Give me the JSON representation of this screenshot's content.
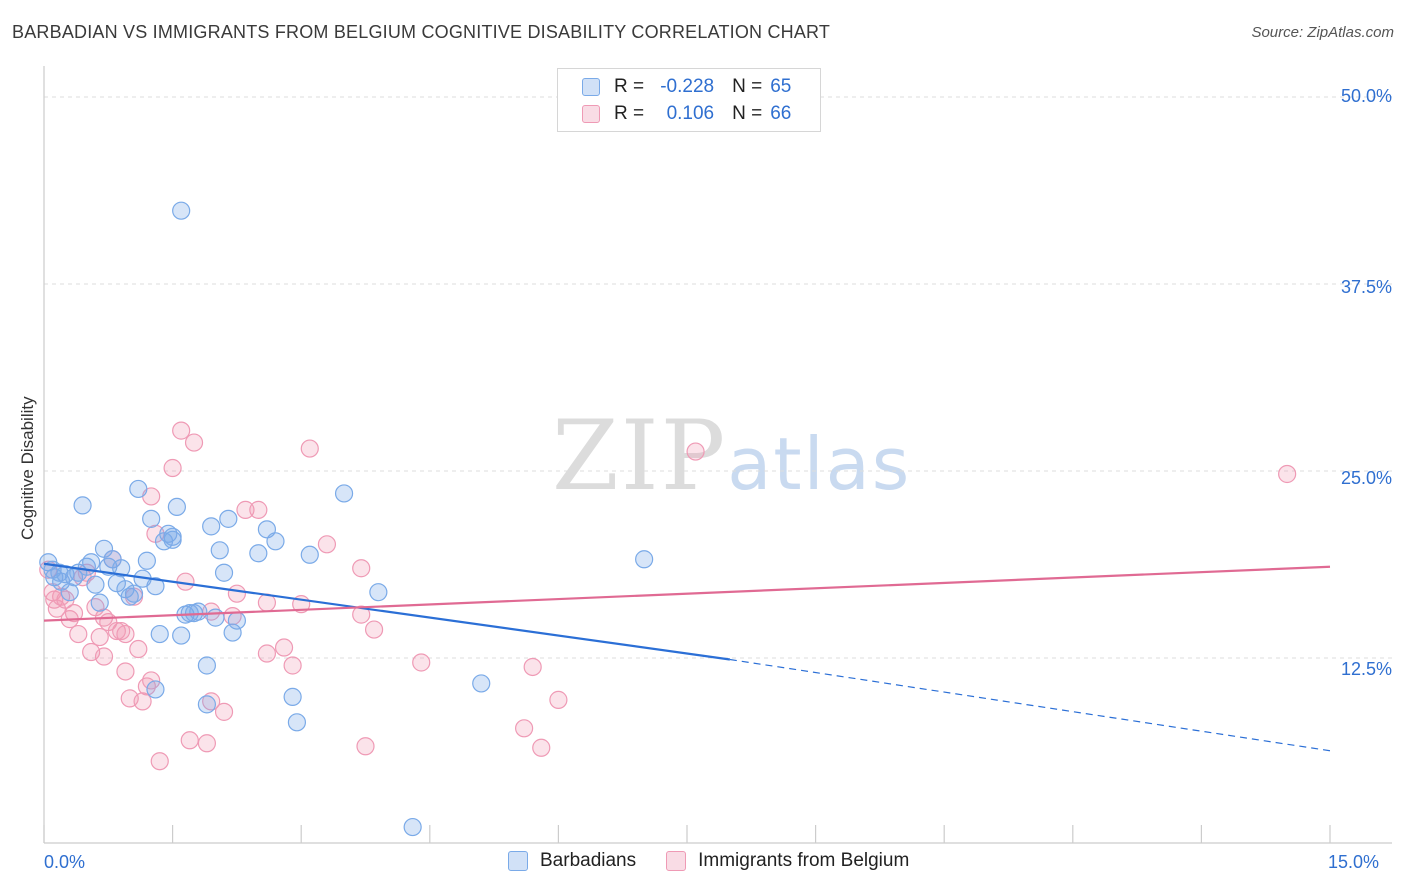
{
  "header": {
    "title": "BARBADIAN VS IMMIGRANTS FROM BELGIUM COGNITIVE DISABILITY CORRELATION CHART",
    "source": "Source: ZipAtlas.com"
  },
  "watermark": {
    "zip": "ZIP",
    "atlas": "atlas"
  },
  "legend_top": {
    "rows": [
      {
        "r_label": "R =",
        "r_value": "-0.228",
        "n_label": "N =",
        "n_value": "65"
      },
      {
        "r_label": "R =",
        "r_value": "0.106",
        "n_label": "N =",
        "n_value": "66"
      }
    ]
  },
  "legend_bottom": {
    "series1": "Barbadians",
    "series2": "Immigrants from Belgium"
  },
  "axes": {
    "x_min_label": "0.0%",
    "x_max_label": "15.0%",
    "y_ticks": [
      "50.0%",
      "37.5%",
      "25.0%",
      "12.5%"
    ]
  },
  "colors": {
    "blue": "#7aaae8",
    "blue_fill": "rgba(122,170,232,0.30)",
    "blue_line": "#2b6fd6",
    "pink": "#ef9ab5",
    "pink_fill": "rgba(239,154,181,0.28)",
    "pink_line": "#e06a93",
    "accent_text": "#2f6fd0"
  },
  "chart_data": {
    "type": "scatter",
    "title": "BARBADIAN VS IMMIGRANTS FROM BELGIUM COGNITIVE DISABILITY CORRELATION CHART",
    "xlabel": "",
    "ylabel": "Cognitive Disability",
    "xlim": [
      0,
      15
    ],
    "ylim": [
      0,
      50
    ],
    "grid": true,
    "legend": "bottom-center",
    "series": [
      {
        "name": "Barbadians",
        "R": -0.228,
        "N": 65,
        "trend": {
          "x": [
            0,
            8.0
          ],
          "y": [
            18.8,
            12.4
          ],
          "dashed_to": [
            15,
            6.3
          ]
        },
        "points": [
          [
            0.05,
            18.9
          ],
          [
            0.1,
            18.4
          ],
          [
            0.12,
            17.9
          ],
          [
            0.18,
            18.2
          ],
          [
            0.2,
            17.6
          ],
          [
            0.25,
            18.1
          ],
          [
            0.3,
            16.9
          ],
          [
            0.35,
            17.9
          ],
          [
            0.4,
            18.2
          ],
          [
            0.45,
            22.7
          ],
          [
            0.5,
            18.6
          ],
          [
            0.55,
            18.9
          ],
          [
            0.6,
            17.4
          ],
          [
            0.65,
            16.2
          ],
          [
            0.7,
            19.8
          ],
          [
            0.75,
            18.6
          ],
          [
            0.8,
            19.1
          ],
          [
            0.85,
            17.5
          ],
          [
            0.9,
            18.5
          ],
          [
            0.95,
            17.1
          ],
          [
            1.0,
            16.6
          ],
          [
            1.05,
            16.8
          ],
          [
            1.1,
            23.8
          ],
          [
            1.15,
            17.8
          ],
          [
            1.2,
            19.0
          ],
          [
            1.25,
            21.8
          ],
          [
            1.3,
            17.3
          ],
          [
            1.3,
            10.4
          ],
          [
            1.35,
            14.1
          ],
          [
            1.4,
            20.3
          ],
          [
            1.45,
            20.8
          ],
          [
            1.5,
            20.6
          ],
          [
            1.5,
            20.4
          ],
          [
            1.55,
            22.6
          ],
          [
            1.6,
            14.0
          ],
          [
            1.6,
            42.4
          ],
          [
            1.65,
            15.4
          ],
          [
            1.7,
            15.5
          ],
          [
            1.75,
            15.5
          ],
          [
            1.8,
            15.6
          ],
          [
            1.9,
            9.4
          ],
          [
            1.9,
            12.0
          ],
          [
            1.95,
            21.3
          ],
          [
            2.0,
            15.2
          ],
          [
            2.05,
            19.7
          ],
          [
            2.1,
            18.2
          ],
          [
            2.15,
            21.8
          ],
          [
            2.2,
            14.2
          ],
          [
            2.25,
            15.0
          ],
          [
            2.5,
            19.5
          ],
          [
            2.6,
            21.1
          ],
          [
            2.7,
            20.3
          ],
          [
            2.9,
            9.9
          ],
          [
            2.95,
            8.2
          ],
          [
            3.1,
            19.4
          ],
          [
            3.5,
            23.5
          ],
          [
            3.9,
            16.9
          ],
          [
            4.3,
            1.2
          ],
          [
            5.1,
            10.8
          ],
          [
            7.0,
            19.1
          ]
        ]
      },
      {
        "name": "Immigrants from Belgium",
        "R": 0.106,
        "N": 66,
        "trend": {
          "x": [
            0,
            15
          ],
          "y": [
            15.0,
            18.6
          ]
        },
        "points": [
          [
            0.05,
            18.4
          ],
          [
            0.1,
            16.9
          ],
          [
            0.12,
            16.4
          ],
          [
            0.15,
            15.8
          ],
          [
            0.2,
            16.6
          ],
          [
            0.25,
            16.4
          ],
          [
            0.3,
            15.1
          ],
          [
            0.35,
            15.5
          ],
          [
            0.4,
            14.1
          ],
          [
            0.45,
            17.9
          ],
          [
            0.5,
            18.2
          ],
          [
            0.55,
            12.9
          ],
          [
            0.6,
            15.9
          ],
          [
            0.65,
            13.9
          ],
          [
            0.7,
            15.2
          ],
          [
            0.7,
            12.6
          ],
          [
            0.75,
            14.9
          ],
          [
            0.8,
            19.1
          ],
          [
            0.85,
            14.3
          ],
          [
            0.9,
            14.3
          ],
          [
            0.95,
            14.1
          ],
          [
            0.95,
            11.6
          ],
          [
            1.0,
            9.8
          ],
          [
            1.05,
            16.6
          ],
          [
            1.1,
            13.1
          ],
          [
            1.15,
            9.6
          ],
          [
            1.2,
            10.6
          ],
          [
            1.25,
            11.0
          ],
          [
            1.25,
            23.3
          ],
          [
            1.3,
            20.8
          ],
          [
            1.35,
            5.6
          ],
          [
            1.5,
            25.2
          ],
          [
            1.6,
            27.7
          ],
          [
            1.65,
            17.6
          ],
          [
            1.7,
            7.0
          ],
          [
            1.75,
            26.9
          ],
          [
            1.9,
            6.8
          ],
          [
            1.95,
            9.6
          ],
          [
            1.95,
            15.6
          ],
          [
            2.1,
            8.9
          ],
          [
            2.2,
            15.3
          ],
          [
            2.25,
            16.8
          ],
          [
            2.35,
            22.4
          ],
          [
            2.5,
            22.4
          ],
          [
            2.6,
            12.8
          ],
          [
            2.6,
            16.2
          ],
          [
            2.8,
            13.2
          ],
          [
            2.9,
            12.0
          ],
          [
            3.0,
            16.1
          ],
          [
            3.1,
            26.5
          ],
          [
            3.3,
            20.1
          ],
          [
            3.7,
            18.5
          ],
          [
            3.7,
            15.4
          ],
          [
            3.75,
            6.6
          ],
          [
            3.85,
            14.4
          ],
          [
            4.4,
            12.2
          ],
          [
            5.6,
            7.8
          ],
          [
            5.7,
            11.9
          ],
          [
            5.8,
            6.5
          ],
          [
            6.0,
            9.7
          ],
          [
            7.6,
            26.3
          ],
          [
            14.5,
            24.8
          ]
        ]
      }
    ]
  }
}
